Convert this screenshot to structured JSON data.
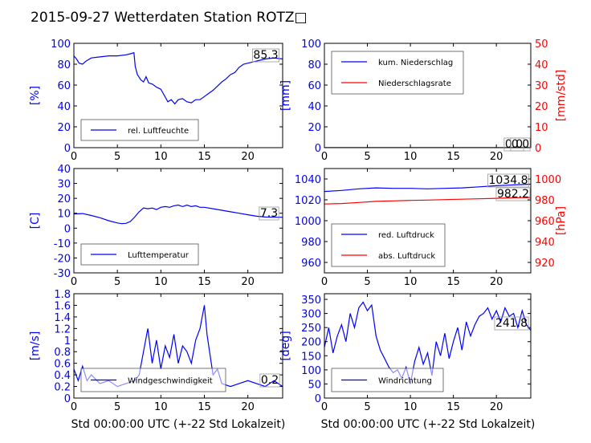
{
  "title": "2015-09-27 Wetterdaten Station ROTZ□",
  "x_axis_label": "Std 00:00:00 UTC (+-22 Std Lokalzeit)",
  "colors": {
    "blue": "#0000ff",
    "red": "#ff0000",
    "light_blue": "#8080ff",
    "black": "#000000"
  },
  "chart_data": [
    {
      "id": "humidity",
      "type": "line",
      "ylabel": "[%]",
      "xlim": [
        0,
        24
      ],
      "ylim": [
        0,
        100
      ],
      "x_ticks": [
        0,
        5,
        10,
        15,
        20
      ],
      "y_ticks": [
        0,
        20,
        40,
        60,
        80,
        100
      ],
      "legend": "bottom-left",
      "current_value": "85.3",
      "series": [
        {
          "name": "rel. Luftfeuchte",
          "color": "#0000ff",
          "points": [
            [
              0,
              88
            ],
            [
              0.3,
              85
            ],
            [
              0.6,
              81
            ],
            [
              1,
              80
            ],
            [
              1.4,
              83
            ],
            [
              2,
              86
            ],
            [
              3,
              87
            ],
            [
              4,
              88
            ],
            [
              5,
              88
            ],
            [
              6,
              89
            ],
            [
              6.5,
              90
            ],
            [
              6.9,
              91
            ],
            [
              7.05,
              78
            ],
            [
              7.3,
              70
            ],
            [
              7.7,
              65
            ],
            [
              8,
              63
            ],
            [
              8.3,
              68
            ],
            [
              8.6,
              62
            ],
            [
              9,
              61
            ],
            [
              9.5,
              58
            ],
            [
              10,
              56
            ],
            [
              10.4,
              50
            ],
            [
              10.8,
              44
            ],
            [
              11.2,
              46
            ],
            [
              11.6,
              42
            ],
            [
              12,
              46
            ],
            [
              12.5,
              47
            ],
            [
              13,
              44
            ],
            [
              13.5,
              43
            ],
            [
              14,
              46
            ],
            [
              14.5,
              46
            ],
            [
              15,
              49
            ],
            [
              15.5,
              52
            ],
            [
              16,
              55
            ],
            [
              16.5,
              59
            ],
            [
              17,
              63
            ],
            [
              17.5,
              66
            ],
            [
              18,
              70
            ],
            [
              18.5,
              72
            ],
            [
              19,
              77
            ],
            [
              19.5,
              80
            ],
            [
              20,
              81
            ],
            [
              21,
              83
            ],
            [
              22,
              85
            ],
            [
              23,
              86
            ],
            [
              24,
              85
            ]
          ]
        }
      ]
    },
    {
      "id": "precipitation",
      "type": "line",
      "ylabel": "[mm]",
      "ylabel_right": "[mm/std]",
      "xlim": [
        0,
        24
      ],
      "ylim": [
        0,
        100
      ],
      "ylim_right": [
        0,
        50
      ],
      "x_ticks": [
        0,
        5,
        10,
        15,
        20
      ],
      "y_ticks": [
        0,
        20,
        40,
        60,
        80,
        100
      ],
      "y_ticks_right": [
        0,
        10,
        20,
        30,
        40,
        50
      ],
      "legend": "top-left",
      "value_labels": [
        "0.0",
        "0.0"
      ],
      "series": [
        {
          "name": "kum. Niederschlag",
          "color": "#0000ff",
          "points": [
            [
              0,
              0
            ],
            [
              24,
              0
            ]
          ]
        },
        {
          "name": "Niederschlagsrate",
          "color": "#ff0000",
          "axis": "right",
          "points": [
            [
              0,
              0
            ],
            [
              24,
              0
            ]
          ]
        }
      ]
    },
    {
      "id": "temperature",
      "type": "line",
      "ylabel": "[C]",
      "xlim": [
        0,
        24
      ],
      "ylim": [
        -30,
        40
      ],
      "x_ticks": [
        0,
        5,
        10,
        15,
        20
      ],
      "y_ticks": [
        -30,
        -20,
        -10,
        0,
        10,
        20,
        30,
        40
      ],
      "legend": "bottom-left",
      "current_value": "7.3",
      "series": [
        {
          "name": "Lufttemperatur",
          "color": "#0000ff",
          "points": [
            [
              0,
              9.5
            ],
            [
              1,
              9.8
            ],
            [
              2,
              8.5
            ],
            [
              3,
              7
            ],
            [
              4,
              5
            ],
            [
              5,
              3.5
            ],
            [
              5.5,
              3
            ],
            [
              6,
              3.2
            ],
            [
              6.5,
              4.5
            ],
            [
              7,
              7.5
            ],
            [
              7.5,
              11
            ],
            [
              8,
              13.5
            ],
            [
              8.5,
              13
            ],
            [
              9,
              13.5
            ],
            [
              9.5,
              12.5
            ],
            [
              10,
              14
            ],
            [
              10.5,
              14.5
            ],
            [
              11,
              14
            ],
            [
              11.5,
              15
            ],
            [
              12,
              15.5
            ],
            [
              12.5,
              14.5
            ],
            [
              13,
              15.5
            ],
            [
              13.5,
              14.5
            ],
            [
              14,
              15
            ],
            [
              14.5,
              14
            ],
            [
              15,
              14
            ],
            [
              16,
              13
            ],
            [
              17,
              12
            ],
            [
              18,
              11
            ],
            [
              19,
              10
            ],
            [
              20,
              9
            ],
            [
              21,
              8
            ],
            [
              22,
              7.5
            ],
            [
              23,
              7.3
            ],
            [
              24,
              7.3
            ]
          ]
        }
      ]
    },
    {
      "id": "pressure",
      "type": "line",
      "ylabel_right": "[hPa]",
      "xlim": [
        0,
        24
      ],
      "ylim": [
        950,
        1050
      ],
      "ylim_right": [
        910,
        1010
      ],
      "x_ticks": [
        0,
        5,
        10,
        15,
        20
      ],
      "y_ticks": [
        960,
        980,
        1000,
        1020,
        1040
      ],
      "y_ticks_right": [
        920,
        940,
        960,
        980,
        1000
      ],
      "legend": "bottom-left",
      "value_labels": [
        "1034.8",
        "982.2"
      ],
      "series": [
        {
          "name": "red. Luftdruck",
          "color": "#0000ff",
          "points": [
            [
              0,
              1028
            ],
            [
              2,
              1029
            ],
            [
              4,
              1030.5
            ],
            [
              6,
              1031.5
            ],
            [
              8,
              1031
            ],
            [
              10,
              1031
            ],
            [
              12,
              1030.5
            ],
            [
              14,
              1031
            ],
            [
              16,
              1031.5
            ],
            [
              18,
              1032.5
            ],
            [
              20,
              1033.5
            ],
            [
              22,
              1034.3
            ],
            [
              24,
              1035
            ]
          ]
        },
        {
          "name": "abs. Luftdruck",
          "color": "#ff0000",
          "axis": "right",
          "points": [
            [
              0,
              976
            ],
            [
              2,
              976.5
            ],
            [
              4,
              977.5
            ],
            [
              6,
              978.5
            ],
            [
              8,
              979
            ],
            [
              10,
              979.5
            ],
            [
              12,
              979.8
            ],
            [
              14,
              980.2
            ],
            [
              16,
              980.6
            ],
            [
              18,
              981
            ],
            [
              20,
              981.5
            ],
            [
              22,
              982
            ],
            [
              24,
              982.2
            ]
          ]
        }
      ]
    },
    {
      "id": "wind_speed",
      "type": "line",
      "ylabel": "[m/s]",
      "xlim": [
        0,
        24
      ],
      "ylim": [
        0,
        1.8
      ],
      "x_ticks": [
        0,
        5,
        10,
        15,
        20
      ],
      "y_ticks": [
        0,
        0.2,
        0.4,
        0.6,
        0.8,
        1.0,
        1.2,
        1.4,
        1.6,
        1.8
      ],
      "legend": "bottom-left",
      "current_value": "0.2",
      "series": [
        {
          "name": "Windgeschwindigkeit",
          "color": "#0000ff",
          "points": [
            [
              0,
              0.5
            ],
            [
              0.5,
              0.3
            ],
            [
              1,
              0.55
            ],
            [
              1.5,
              0.3
            ],
            [
              2,
              0.4
            ],
            [
              3,
              0.25
            ],
            [
              4,
              0.3
            ],
            [
              5,
              0.2
            ],
            [
              6,
              0.25
            ],
            [
              7,
              0.3
            ],
            [
              7.5,
              0.4
            ],
            [
              8,
              0.8
            ],
            [
              8.5,
              1.2
            ],
            [
              9,
              0.6
            ],
            [
              9.5,
              1.0
            ],
            [
              10,
              0.5
            ],
            [
              10.5,
              0.9
            ],
            [
              11,
              0.7
            ],
            [
              11.5,
              1.1
            ],
            [
              12,
              0.6
            ],
            [
              12.5,
              0.9
            ],
            [
              13,
              0.8
            ],
            [
              13.5,
              0.6
            ],
            [
              14,
              1.0
            ],
            [
              14.5,
              1.2
            ],
            [
              15,
              1.6
            ],
            [
              15.3,
              1.1
            ],
            [
              15.6,
              0.8
            ],
            [
              16,
              0.4
            ],
            [
              16.5,
              0.5
            ],
            [
              17,
              0.25
            ],
            [
              18,
              0.2
            ],
            [
              19,
              0.25
            ],
            [
              20,
              0.3
            ],
            [
              21,
              0.25
            ],
            [
              22,
              0.2
            ],
            [
              23,
              0.3
            ],
            [
              24,
              0.2
            ]
          ]
        }
      ]
    },
    {
      "id": "wind_direction",
      "type": "line",
      "ylabel": "[deg]",
      "xlim": [
        0,
        24
      ],
      "ylim": [
        0,
        370
      ],
      "x_ticks": [
        0,
        5,
        10,
        15,
        20
      ],
      "y_ticks": [
        0,
        50,
        100,
        150,
        200,
        250,
        300,
        350
      ],
      "legend": "bottom-left",
      "current_value": "241.8",
      "series": [
        {
          "name": "Windrichtung",
          "color": "#0000ff",
          "points": [
            [
              0,
              180
            ],
            [
              0.5,
              250
            ],
            [
              1,
              160
            ],
            [
              1.5,
              220
            ],
            [
              2,
              260
            ],
            [
              2.5,
              200
            ],
            [
              3,
              300
            ],
            [
              3.5,
              250
            ],
            [
              4,
              320
            ],
            [
              4.5,
              340
            ],
            [
              5,
              310
            ],
            [
              5.5,
              330
            ],
            [
              6,
              220
            ],
            [
              6.5,
              170
            ],
            [
              7,
              140
            ],
            [
              7.5,
              110
            ],
            [
              8,
              90
            ],
            [
              8.5,
              100
            ],
            [
              9,
              70
            ],
            [
              9.5,
              110
            ],
            [
              10,
              50
            ],
            [
              10.5,
              130
            ],
            [
              11,
              180
            ],
            [
              11.5,
              120
            ],
            [
              12,
              160
            ],
            [
              12.5,
              80
            ],
            [
              13,
              200
            ],
            [
              13.5,
              150
            ],
            [
              14,
              230
            ],
            [
              14.5,
              140
            ],
            [
              15,
              200
            ],
            [
              15.5,
              250
            ],
            [
              16,
              170
            ],
            [
              16.5,
              270
            ],
            [
              17,
              220
            ],
            [
              17.5,
              260
            ],
            [
              18,
              290
            ],
            [
              18.5,
              300
            ],
            [
              19,
              320
            ],
            [
              19.5,
              280
            ],
            [
              20,
              310
            ],
            [
              20.5,
              270
            ],
            [
              21,
              320
            ],
            [
              21.5,
              290
            ],
            [
              22,
              300
            ],
            [
              22.5,
              250
            ],
            [
              23,
              310
            ],
            [
              23.5,
              260
            ],
            [
              24,
              240
            ]
          ]
        }
      ]
    }
  ]
}
